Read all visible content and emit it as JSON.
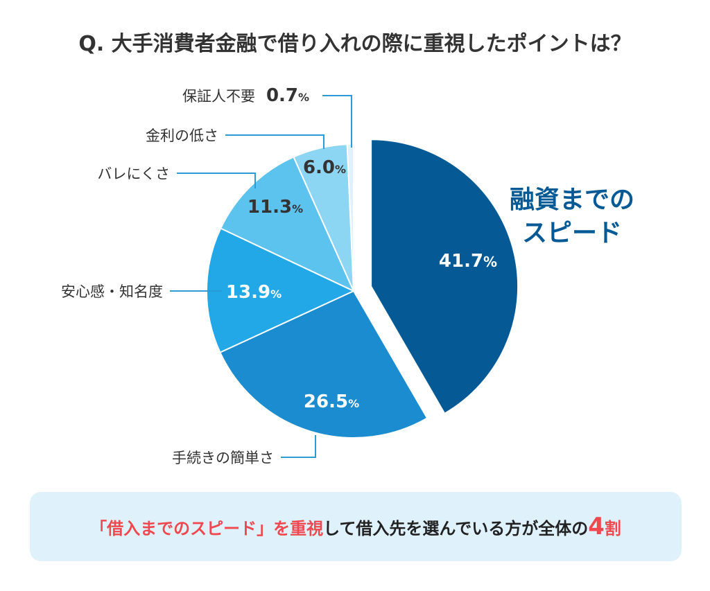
{
  "title": "Q. 大手消費者金融で借り入れの際に重視したポイントは？",
  "chart_data": {
    "type": "pie",
    "title": "Q. 大手消費者金融で借り入れの際に重視したポイントは？",
    "slices": [
      {
        "label": "融資までのスピード",
        "value": 41.7,
        "color": "#055a96",
        "exploded": true
      },
      {
        "label": "手続きの簡単さ",
        "value": 26.5,
        "color": "#1a8ccf"
      },
      {
        "label": "安心感・知名度",
        "value": 13.9,
        "color": "#22a8e6"
      },
      {
        "label": "バレにくさ",
        "value": 11.3,
        "color": "#5cc3ee"
      },
      {
        "label": "金利の低さ",
        "value": 6.0,
        "color": "#8dd6f3"
      },
      {
        "label": "保証人不要",
        "value": 0.7,
        "color": "#dff1fb"
      }
    ],
    "value_labels": [
      "41.7",
      "26.5",
      "13.9",
      "11.3",
      "6.0",
      "0.7"
    ],
    "unit": "%",
    "highlight_label_lines": [
      "融資までの",
      "スピード"
    ]
  },
  "callout": {
    "red_part": "「借入までのスピード」を重視",
    "black_part": "して借入先を選んでいる方が全体の",
    "red_number": "4",
    "red_suffix": "割"
  }
}
